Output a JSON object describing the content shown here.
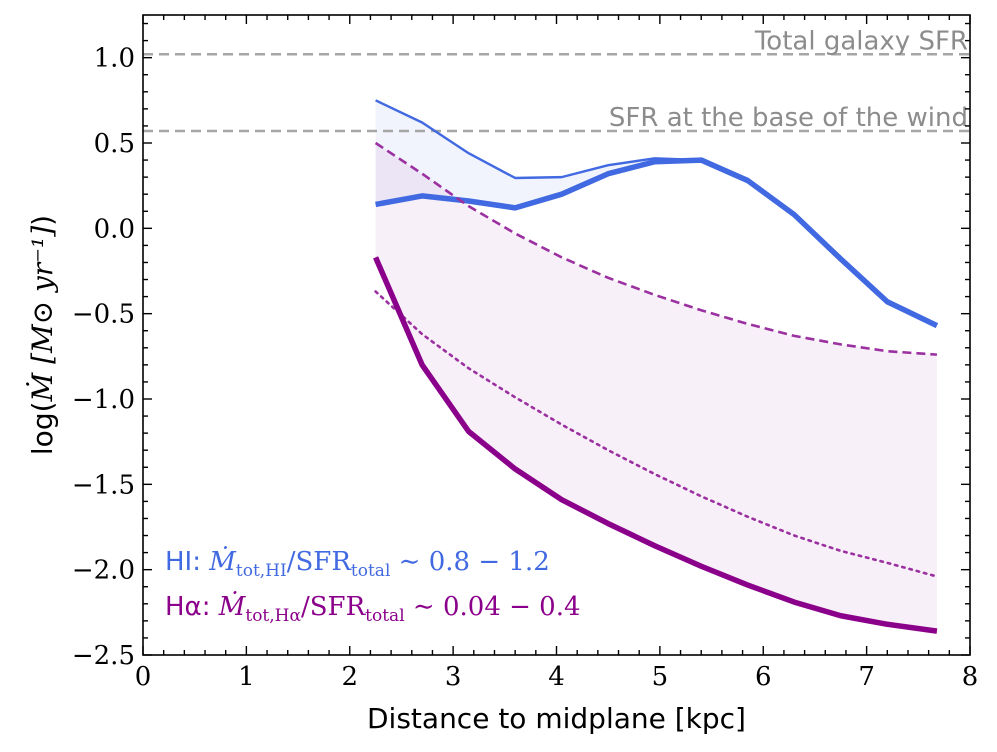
{
  "chart_data": {
    "type": "line",
    "title": "",
    "xlabel": "Distance to midplane [kpc]",
    "ylabel_prefix": "log(",
    "ylabel_math": "Ṁ [M⊙ yr⁻¹]",
    "ylabel_suffix": ")",
    "xlim": [
      0,
      8
    ],
    "ylim": [
      -2.5,
      1.25
    ],
    "x_ticks": [
      0,
      1,
      2,
      3,
      4,
      5,
      6,
      7,
      8
    ],
    "x_tick_labels": [
      "0",
      "1",
      "2",
      "3",
      "4",
      "5",
      "6",
      "7",
      "8"
    ],
    "y_ticks": [
      -2.5,
      -2.0,
      -1.5,
      -1.0,
      -0.5,
      0.0,
      0.5,
      1.0
    ],
    "y_tick_labels": [
      "−2.5",
      "−2.0",
      "−1.5",
      "−1.0",
      "−0.5",
      "0.0",
      "0.5",
      "1.0"
    ],
    "reference_lines": [
      {
        "name": "Total galaxy SFR",
        "y": 1.02,
        "color": "#a6a6a6"
      },
      {
        "name": "SFR at the base of the wind",
        "y": 0.57,
        "color": "#a6a6a6"
      }
    ],
    "series": [
      {
        "name": "HI upper",
        "color": "#4169e1",
        "style": "solid",
        "weight": "thin",
        "x": [
          2.25,
          2.7,
          3.15,
          3.6,
          4.05,
          4.5,
          4.95,
          5.4
        ],
        "y": [
          0.75,
          0.62,
          0.44,
          0.295,
          0.3,
          0.37,
          0.41,
          0.4
        ]
      },
      {
        "name": "HI lower",
        "color": "#4169e1",
        "style": "solid",
        "weight": "thick",
        "x": [
          2.25,
          2.7,
          3.15,
          3.6,
          4.05,
          4.5,
          4.95,
          5.4,
          5.85,
          6.3,
          6.75,
          7.2,
          7.68
        ],
        "y": [
          0.14,
          0.19,
          0.16,
          0.12,
          0.2,
          0.32,
          0.39,
          0.4,
          0.28,
          0.08,
          -0.18,
          -0.43,
          -0.57
        ]
      },
      {
        "name": "Hα upper",
        "color": "#9b30a0",
        "style": "dashed",
        "weight": "medium",
        "x": [
          2.25,
          2.7,
          3.15,
          3.6,
          4.05,
          4.5,
          4.95,
          5.4,
          5.85,
          6.3,
          6.75,
          7.2,
          7.68
        ],
        "y": [
          0.5,
          0.32,
          0.13,
          -0.03,
          -0.17,
          -0.29,
          -0.39,
          -0.48,
          -0.56,
          -0.63,
          -0.68,
          -0.72,
          -0.74
        ]
      },
      {
        "name": "Hα middle",
        "color": "#9b30a0",
        "style": "dotted",
        "weight": "medium",
        "x": [
          2.25,
          2.7,
          3.15,
          3.6,
          4.05,
          4.5,
          4.95,
          5.4,
          5.85,
          6.3,
          6.75,
          7.2,
          7.68
        ],
        "y": [
          -0.37,
          -0.62,
          -0.82,
          -0.99,
          -1.15,
          -1.3,
          -1.44,
          -1.57,
          -1.69,
          -1.8,
          -1.89,
          -1.96,
          -2.04
        ]
      },
      {
        "name": "Hα lower",
        "color": "#8b008b",
        "style": "solid",
        "weight": "thick",
        "x": [
          2.25,
          2.7,
          3.15,
          3.6,
          4.05,
          4.5,
          4.95,
          5.4,
          5.85,
          6.3,
          6.75,
          7.2,
          7.68
        ],
        "y": [
          -0.17,
          -0.8,
          -1.19,
          -1.41,
          -1.59,
          -1.73,
          -1.86,
          -1.98,
          -2.09,
          -2.19,
          -2.27,
          -2.32,
          -2.36
        ]
      }
    ],
    "bands": [
      {
        "name": "HI range",
        "upper": "HI upper",
        "lower": "HI lower",
        "color": "#4169e1",
        "opacity": 0.07
      },
      {
        "name": "Hα range",
        "upper": "Hα upper",
        "lower": "Hα lower",
        "color": "#9b30a0",
        "opacity": 0.07
      }
    ],
    "annotations": [
      {
        "id": "hi",
        "color": "#4169e1",
        "label": "HI",
        "sep": ": ",
        "mdot": "Ṁ",
        "sub": "tot,HI",
        "ratio": "/SFR",
        "sub2": "total",
        "tilde": " ∼ ",
        "range": "0.8 − 1.2"
      },
      {
        "id": "ha",
        "color": "#8b008b",
        "label": "Hα",
        "sep": ": ",
        "mdot": "Ṁ",
        "sub": "tot,Hα",
        "ratio": "/SFR",
        "sub2": "total",
        "tilde": " ∼ ",
        "range": "0.04 − 0.4"
      }
    ]
  }
}
